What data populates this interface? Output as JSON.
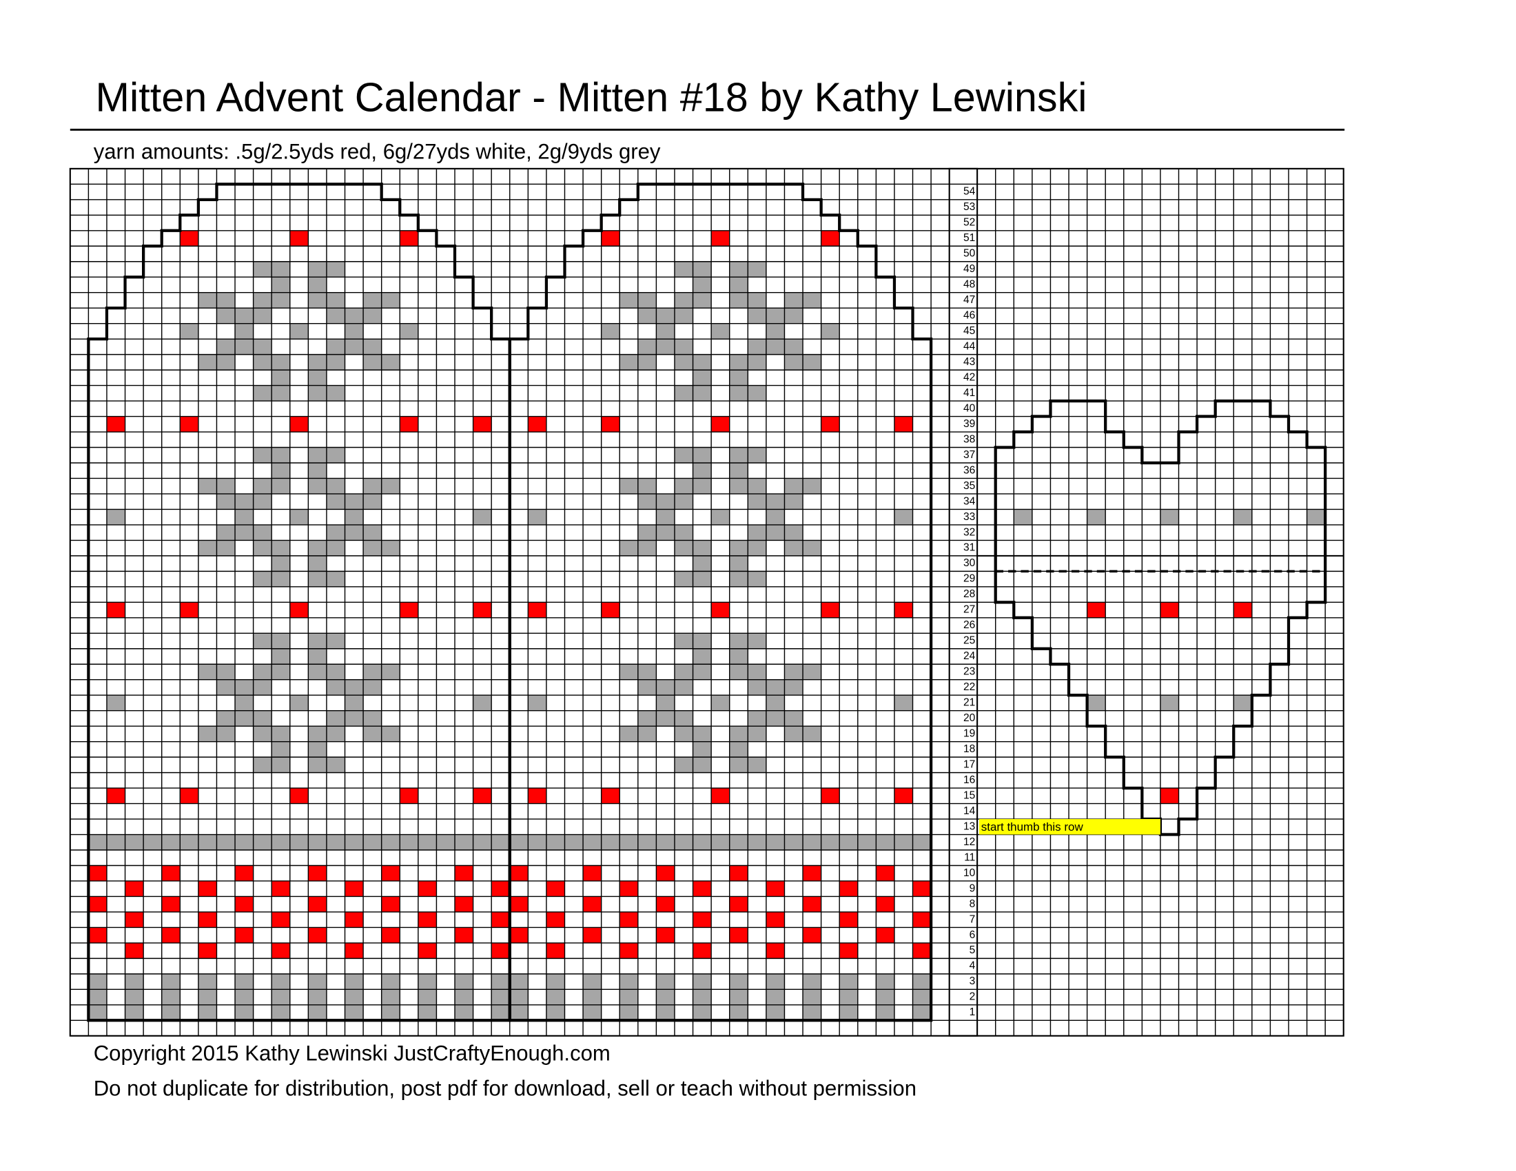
{
  "header": {
    "title": "Mitten Advent Calendar - Mitten #18 by Kathy Lewinski",
    "yarn_amounts": "yarn amounts: .5g/2.5yds red, 6g/27yds white, 2g/9yds grey"
  },
  "chart": {
    "row_numbers": [
      1,
      2,
      3,
      4,
      5,
      6,
      7,
      8,
      9,
      10,
      11,
      12,
      13,
      14,
      15,
      16,
      17,
      18,
      19,
      20,
      21,
      22,
      23,
      24,
      25,
      26,
      27,
      28,
      29,
      30,
      31,
      32,
      33,
      34,
      35,
      36,
      37,
      38,
      39,
      40,
      41,
      42,
      43,
      44,
      45,
      46,
      47,
      48,
      49,
      50,
      51,
      52,
      53,
      54
    ],
    "thumb_note": "start thumb this row"
  },
  "footer": {
    "copyright": "Copyright 2015 Kathy Lewinski JustCraftyEnough.com",
    "notice": "Do not duplicate for distribution, post pdf for download, sell or teach without permission"
  }
}
